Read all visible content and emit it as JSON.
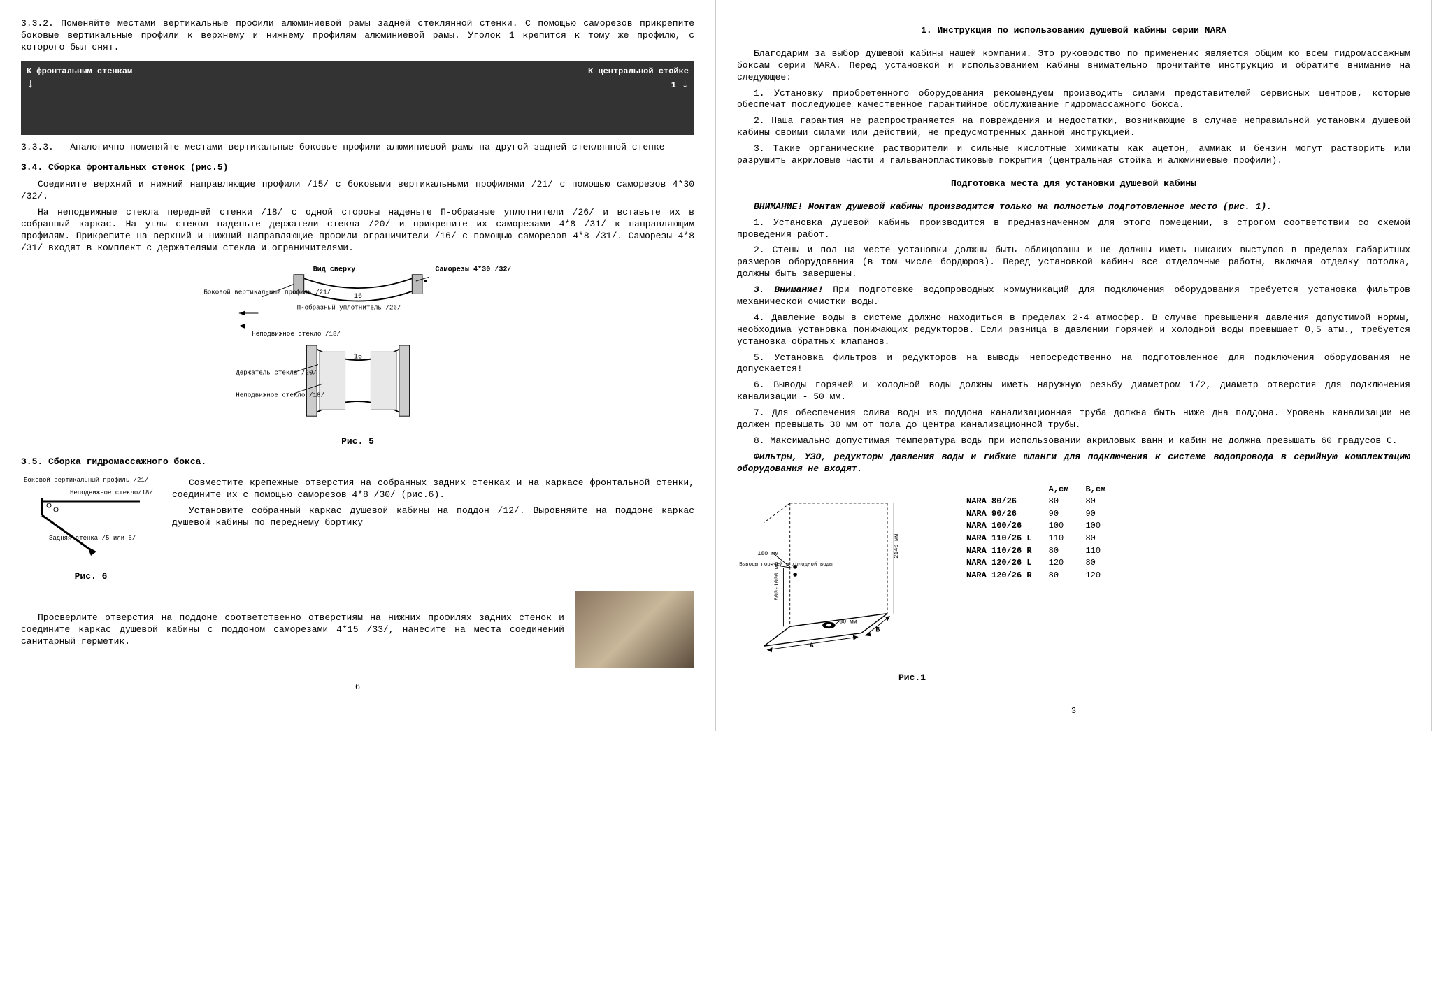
{
  "left": {
    "p332": "3.3.2. Поменяйте местами вертикальные профили алюминиевой рамы задней стеклянной стенки. С помощью саморезов прикрепите боковые вертикальные профили к верхнему и нижнему профилям алюминиевой рамы. Уголок 1 крепится к тому же профилю, с которого был снят.",
    "photo_left": "К фронтальным стенкам",
    "photo_right": "К центральной стойке",
    "photo_num": "1",
    "p333": "3.3.3.   Аналогично поменяйте местами вертикальные боковые профили алюминиевой рамы на другой задней стеклянной стенке",
    "h34": "3.4. Сборка фронтальных стенок (рис.5)",
    "p34a": "Соедините верхний и нижний направляющие профили /15/ с боковыми вертикальными профилями /21/ с помощью саморезов 4*30 /32/.",
    "p34b": "На неподвижные стекла передней стенки /18/ с одной стороны наденьте П-образные уплотнители /26/ и вставьте их в собранный каркас. На углы стекол наденьте держатели стекла /20/ и прикрепите их саморезами 4*8 /31/ к направляющим профилям. Прикрепите на верхний и нижний направляющие профили ограничители /16/ с помощью саморезов 4*8 /31/. Саморезы 4*8 /31/ входят в комплект с держателями стекла и ограничителями.",
    "fig5_labels": {
      "top": "Вид сверху",
      "screws": "Саморезы 4*30 /32/",
      "side_profile": "Боковой вертикальный профиль /21/",
      "p_seal": "П-образный уплотнитель /26/",
      "fixed_glass": "Неподвижное стекло /18/",
      "holder": "Держатель стекла /20/",
      "num16": "16"
    },
    "fig5_cap": "Рис. 5",
    "h35": "3.5. Сборка гидромассажного бокса.",
    "p35a": "Совместите крепежные отверстия на собранных задних стенках и на каркасе фронтальной стенки, соедините их с помощью саморезов 4*8 /30/ (рис.6).",
    "p35b": "Установите собранный каркас душевой кабины на поддон /12/. Выровняйте на поддоне каркас душевой кабины по переднему бортику",
    "fig6_labels": {
      "side_profile": "Боковой вертикальный профиль /21/",
      "fixed_glass": "Неподвижное стекло/18/",
      "rear_wall": "Задняя стенка /5 или 6/"
    },
    "fig6_cap": "Рис. 6",
    "p35c": "Просверлите отверстия на поддоне соответственно отверстиям на нижних профилях задних стенок и соедините каркас душевой кабины с поддоном саморезами 4*15 /33/, нанесите на места соединений санитарный герметик.",
    "page_num": "6"
  },
  "right": {
    "h1": "1. Инструкция по использованию душевой кабины серии NARA",
    "intro": "Благодарим за выбор душевой кабины нашей компании. Это руководство по применению является общим ко всем гидромассажным боксам серии NARA. Перед установкой и использованием кабины внимательно прочитайте инструкцию и обратите внимание на следующее:",
    "i1": "1. Установку приобретенного оборудования рекомендуем производить силами представителей сервисных центров, которые обеспечат последующее качественное гарантийное обслуживание гидромассажного бокса.",
    "i2": "2. Наша гарантия не распространяется на повреждения и недостатки, возникающие в случае неправильной установки душевой кабины своими силами или действий, не предусмотренных данной инструкцией.",
    "i3": "3. Такие органические растворители и сильные кислотные химикаты как ацетон, аммиак и бензин могут растворить или разрушить акриловые части и гальванопластиковые покрытия (центральная стойка и алюминиевые профили).",
    "h_prep": "Подготовка места для установки душевой кабины",
    "warn1": "ВНИМАНИЕ! Монтаж душевой кабины производится только на полностью подготовленное место (рис. 1).",
    "prep1": "1. Установка душевой кабины производится в предназначенном для этого помещении, в строгом соответствии со схемой проведения работ.",
    "prep2": "2. Стены и пол на месте установки должны быть облицованы и не должны иметь никаких выступов в пределах габаритных размеров оборудования (в том числе бордюров). Перед установкой кабины все отделочные работы, включая отделку потолка, должны быть завершены.",
    "prep3_bold": "3. Внимание!",
    "prep3_rest": " При подготовке водопроводных коммуникаций для подключения оборудования требуется установка фильтров механической очистки воды.",
    "prep4": "4. Давление воды в системе должно находиться в пределах 2-4 атмосфер. В случае превышения давления допустимой нормы, необходима установка понижающих редукторов. Если разница в давлении горячей и холодной воды превышает 0,5 атм., требуется установка обратных клапанов.",
    "prep5": "5. Установка фильтров и редукторов на выводы непосредственно на подготовленное для подключения оборудования не допускается!",
    "prep6": "6. Выводы горячей и холодной воды должны иметь наружную резьбу диаметром 1/2, диаметр отверстия для подключения канализации - 50 мм.",
    "prep7": "7. Для обеспечения слива воды из поддона канализационная труба должна быть ниже дна поддона. Уровень канализации не должен превышать 30 мм от пола до центра канализационной трубы.",
    "prep8": "8. Максимально допустимая температура воды при использовании акриловых ванн и кабин не должна превышать 60 градусов С.",
    "warn2": "Фильтры, УЗО, редукторы давления воды и гибкие шланги для подключения к системе водопровода в серийную комплектацию оборудования не входят.",
    "fig1_labels": {
      "hotcold": "Выводы горячей и холодной воды",
      "h2140": "2140 мм",
      "h800": "800-1000 мм",
      "d100": "100 мм",
      "d30": "30 мм",
      "A": "A",
      "B": "B"
    },
    "dim_table": {
      "head_a": "А,см",
      "head_b": "В,см",
      "rows": [
        {
          "name": "NARA 80/26",
          "a": "80",
          "b": "80"
        },
        {
          "name": "NARA 90/26",
          "a": "90",
          "b": "90"
        },
        {
          "name": "NARA 100/26",
          "a": "100",
          "b": "100"
        },
        {
          "name": "NARA 110/26 L",
          "a": "110",
          "b": "80"
        },
        {
          "name": "NARA 110/26 R",
          "a": "80",
          "b": "110"
        },
        {
          "name": "NARA 120/26 L",
          "a": "120",
          "b": "80"
        },
        {
          "name": "NARA 120/26 R",
          "a": "80",
          "b": "120"
        }
      ]
    },
    "fig1_cap": "Рис.1",
    "page_num": "3"
  }
}
